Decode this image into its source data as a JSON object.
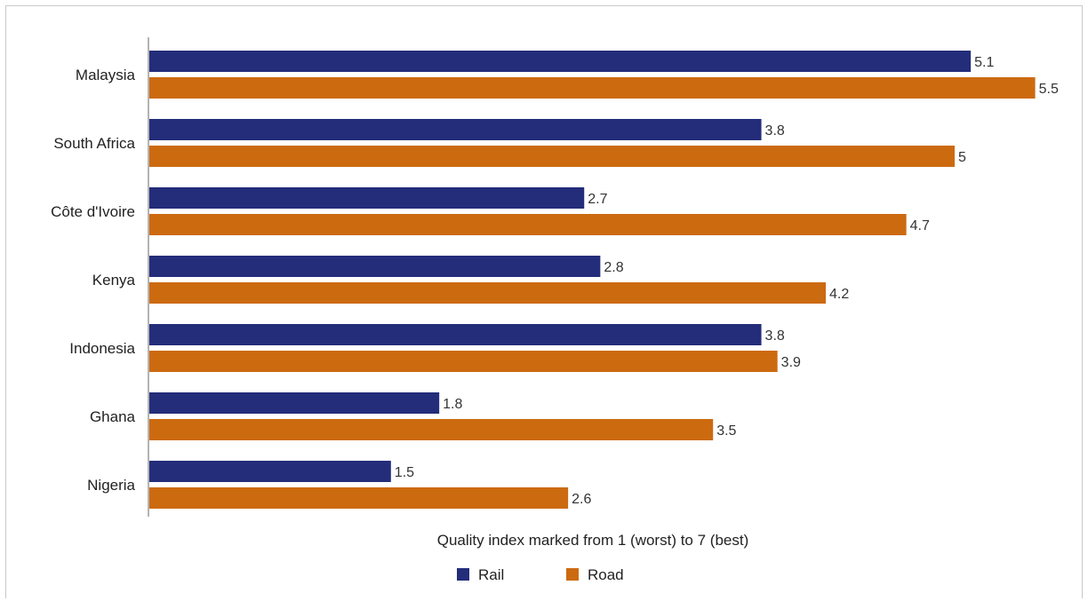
{
  "chart_data": {
    "type": "bar",
    "orientation": "horizontal",
    "categories": [
      "Malaysia",
      "South Africa",
      "Côte d'Ivoire",
      "Kenya",
      "Indonesia",
      "Ghana",
      "Nigeria"
    ],
    "series": [
      {
        "name": "Rail",
        "color": "#232d7a",
        "values": [
          5.1,
          3.8,
          2.7,
          2.8,
          3.8,
          1.8,
          1.5
        ]
      },
      {
        "name": "Road",
        "color": "#cc6a10",
        "values": [
          5.5,
          5,
          4.7,
          4.2,
          3.9,
          3.5,
          2.6
        ]
      }
    ],
    "xlabel": "Quality index marked from 1 (worst) to 7 (best)",
    "xlim": [
      0,
      7
    ],
    "grid": false,
    "legend": "bottom"
  }
}
